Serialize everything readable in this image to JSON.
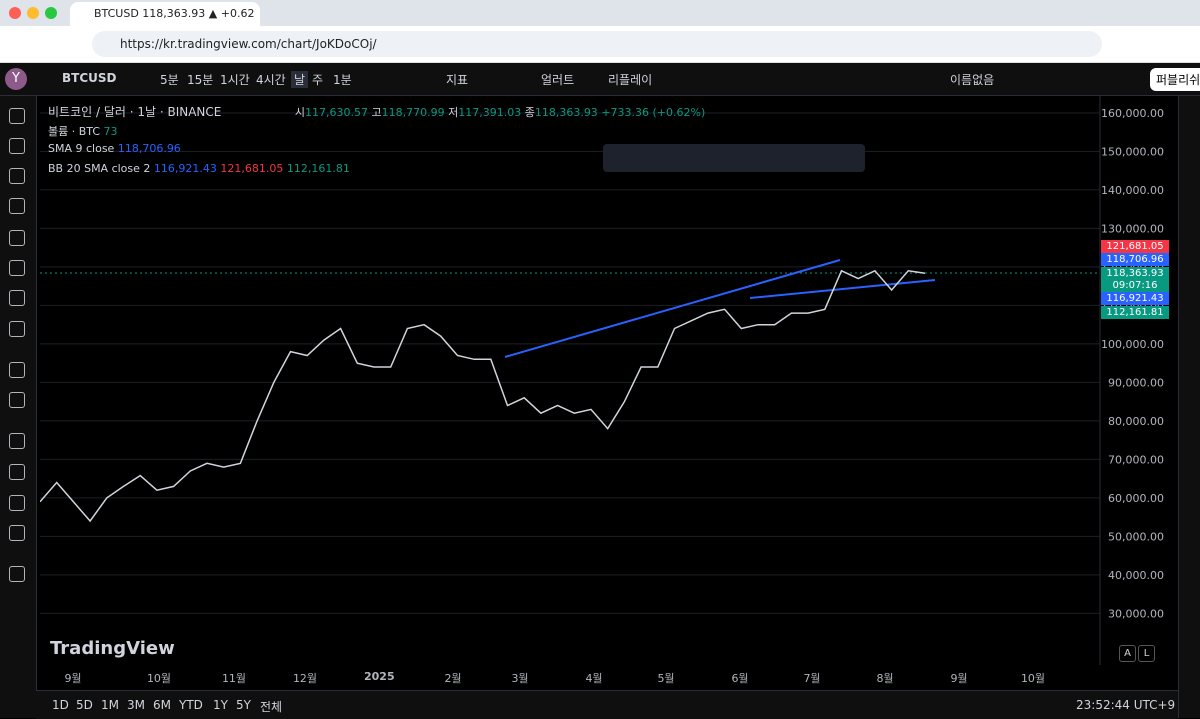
{
  "browser": {
    "tab_title": "BTCUSD 118,363.93 ▲ +0.62",
    "url": "https://kr.tradingview.com/chart/JoKDoCOj/"
  },
  "toolbar": {
    "logo": "Y",
    "symbol": "BTCUSD",
    "intervals": [
      "5분",
      "15분",
      "1시간",
      "4시간",
      "날",
      "주",
      "1분"
    ],
    "indicators": "지표",
    "alert": "얼러트",
    "replay": "리플레이",
    "layout_name": "이름없음",
    "publish": "퍼블리쉬"
  },
  "legend": {
    "title": "비트코인 / 달러 · 1날 · BINANCE",
    "open_label": "시",
    "open": "117,630.57",
    "high_label": "고",
    "high": "118,770.99",
    "low_label": "저",
    "low": "117,391.03",
    "close_label": "종",
    "close": "118,363.93",
    "change": "+733.36 (+0.62%)",
    "volume": "볼륨 · BTC",
    "volume_value": "73",
    "sma": "SMA 9 close",
    "sma_value": "118,706.96",
    "bb": "BB 20 SMA close 2",
    "bb_mid": "116,921.43",
    "bb_upper": "121,681.05",
    "bb_lower": "112,161.81"
  },
  "price_tags": [
    {
      "text": "121,681.05",
      "color": "#f23645"
    },
    {
      "text": "118,706.96",
      "color": "#2962ff"
    },
    {
      "text": "118,363.93",
      "color": "#089981"
    },
    {
      "text": "09:07:16",
      "color": "#089981"
    },
    {
      "text": "116,921.43",
      "color": "#2962ff"
    },
    {
      "text": "112,161.81",
      "color": "#089981"
    }
  ],
  "time_labels": [
    "9월",
    "10월",
    "11월",
    "12월",
    "2025",
    "2월",
    "3월",
    "4월",
    "5월",
    "6월",
    "7월",
    "8월",
    "9월",
    "10월"
  ],
  "ranges": [
    "1D",
    "5D",
    "1M",
    "3M",
    "6M",
    "YTD",
    "1Y",
    "5Y",
    "전체"
  ],
  "clock": "23:52:44 UTC+9",
  "watermark": "TradingView",
  "scale_buttons": [
    "A",
    "L"
  ],
  "chart_data": {
    "type": "line",
    "color": "#d1d4dc",
    "values": [
      59000,
      64000,
      59000,
      54000,
      60000,
      63000,
      65800,
      62000,
      63000,
      67000,
      69000,
      68000,
      69000,
      80000,
      90000,
      98000,
      97000,
      101000,
      104000,
      95000,
      94000,
      94000,
      104000,
      105000,
      102000,
      97000,
      96000,
      96000,
      84000,
      86000,
      82000,
      84000,
      82000,
      83000,
      78000,
      85000,
      94000,
      94000,
      104000,
      106000,
      108000,
      109000,
      104000,
      105000,
      105000,
      108000,
      108000,
      109000,
      119000,
      117000,
      119000,
      114000,
      119000,
      118363.93
    ],
    "ylim": [
      16600,
      164400
    ],
    "yticks": [
      {
        "value": 30000,
        "label": "30,000.00"
      },
      {
        "value": 40000,
        "label": "40,000.00"
      },
      {
        "value": 50000,
        "label": "50,000.00"
      },
      {
        "value": 60000,
        "label": "60,000.00"
      },
      {
        "value": 70000,
        "label": "70,000.00"
      },
      {
        "value": 80000,
        "label": "80,000.00"
      },
      {
        "value": 90000,
        "label": "90,000.00"
      },
      {
        "value": 100000,
        "label": "100,000.00"
      },
      {
        "value": 110000,
        "label": "110,000.00"
      },
      {
        "value": 120000,
        "label": "120,000.00"
      },
      {
        "value": 130000,
        "label": "130,000.00"
      },
      {
        "value": 140000,
        "label": "140,000.00"
      },
      {
        "value": 150000,
        "label": "150,000.00"
      },
      {
        "value": 160000,
        "label": "160,000.00"
      }
    ],
    "grid": true
  }
}
